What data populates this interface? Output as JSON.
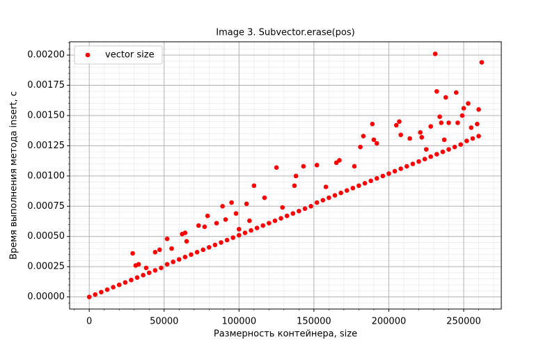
{
  "chart_data": {
    "type": "scatter",
    "title": "Image 3. Subvector.erase(pos)",
    "x_label": "Размерность контейнера, size",
    "y_label": "Время выполнения метода insert, с",
    "xlim": [
      -13100,
      275100
    ],
    "ylim": [
      -0.0001,
      0.00211
    ],
    "xticks": [
      0,
      50000,
      100000,
      150000,
      200000,
      250000
    ],
    "yticks": [
      {
        "value": 0,
        "label": "0.00000"
      },
      {
        "value": 0.00025,
        "label": "0.00025"
      },
      {
        "value": 0.0005,
        "label": "0.00050"
      },
      {
        "value": 0.00075,
        "label": "0.00075"
      },
      {
        "value": 0.001,
        "label": "0.00100"
      },
      {
        "value": 0.00125,
        "label": "0.00125"
      },
      {
        "value": 0.0015,
        "label": "0.00150"
      },
      {
        "value": 0.00175,
        "label": "0.00175"
      },
      {
        "value": 0.002,
        "label": "0.00200"
      }
    ],
    "xminorticks": [
      -10000,
      10000,
      20000,
      30000,
      40000,
      60000,
      70000,
      80000,
      90000,
      110000,
      120000,
      130000,
      140000,
      160000,
      170000,
      180000,
      190000,
      210000,
      220000,
      230000,
      240000,
      260000,
      270000
    ],
    "yminorticks": [
      -5e-05,
      5e-05,
      0.0001,
      0.00015,
      0.0002,
      0.0003,
      0.00035,
      0.0004,
      0.00045,
      0.00055,
      0.0006,
      0.00065,
      0.0007,
      0.0008,
      0.00085,
      0.0009,
      0.00095,
      0.00105,
      0.0011,
      0.00115,
      0.0012,
      0.0013,
      0.00135,
      0.0014,
      0.00145,
      0.00155,
      0.0016,
      0.00165,
      0.0017,
      0.0018,
      0.00185,
      0.0019,
      0.00195,
      0.00205,
      0.0021
    ],
    "grid": true,
    "minor_grid": true,
    "legend": "upper left",
    "x": [
      0,
      4000,
      8000,
      12000,
      16000,
      20000,
      24000,
      28000,
      32000,
      36000,
      40000,
      44000,
      48000,
      52000,
      56000,
      60000,
      64000,
      68000,
      72000,
      76000,
      80000,
      84000,
      88000,
      92000,
      96000,
      100000,
      104000,
      108000,
      112000,
      116000,
      120000,
      124000,
      128000,
      132000,
      136000,
      140000,
      144000,
      148000,
      152000,
      156000,
      160000,
      164000,
      168000,
      172000,
      176000,
      180000,
      184000,
      188000,
      192000,
      196000,
      200000,
      204000,
      208000,
      212000,
      216000,
      220000,
      224000,
      228000,
      232000,
      236000,
      240000,
      244000,
      248000,
      252000,
      256000,
      260000,
      29000,
      31000,
      33000,
      38000,
      44000,
      47000,
      52000,
      55000,
      62000,
      64000,
      65000,
      73000,
      77000,
      79000,
      85000,
      89000,
      91000,
      95000,
      98000,
      100000,
      105000,
      107000,
      110000,
      117000,
      125000,
      129000,
      137000,
      138000,
      143000,
      152000,
      158000,
      165000,
      167000,
      177000,
      181000,
      183000,
      189000,
      190000,
      192000,
      205000,
      207000,
      208000,
      214000,
      221000,
      222000,
      225000,
      228000,
      231000,
      232000,
      234000,
      235000,
      237000,
      238000,
      240000,
      245000,
      246000,
      249000,
      250000,
      253000,
      255000,
      259000,
      260000,
      262000
    ],
    "series": [
      {
        "name": "vector size",
        "color": "red",
        "values": [
          0,
          2e-05,
          4e-05,
          6e-05,
          8e-05,
          0.0001,
          0.00012,
          0.00014,
          0.00016,
          0.00018,
          0.0002,
          0.00022,
          0.00024,
          0.00027,
          0.00029,
          0.00031,
          0.00033,
          0.00035,
          0.00037,
          0.00039,
          0.00041,
          0.00043,
          0.00045,
          0.00047,
          0.00049,
          0.00051,
          0.00053,
          0.00055,
          0.00057,
          0.00059,
          0.00061,
          0.00063,
          0.00065,
          0.00067,
          0.00069,
          0.00071,
          0.00073,
          0.00075,
          0.00078,
          0.0008,
          0.00082,
          0.00084,
          0.00086,
          0.00088,
          0.0009,
          0.00092,
          0.00094,
          0.00096,
          0.00098,
          0.001,
          0.00102,
          0.00104,
          0.00106,
          0.00108,
          0.0011,
          0.00112,
          0.00114,
          0.00116,
          0.00118,
          0.0012,
          0.00122,
          0.00124,
          0.00126,
          0.00129,
          0.00131,
          0.00133,
          0.00036,
          0.00026,
          0.00027,
          0.00024,
          0.00037,
          0.00039,
          0.00048,
          0.0004,
          0.00052,
          0.00053,
          0.00046,
          0.00059,
          0.00058,
          0.00067,
          0.00061,
          0.00075,
          0.00064,
          0.00078,
          0.00069,
          0.00056,
          0.00077,
          0.00063,
          0.00092,
          0.00082,
          0.00107,
          0.00074,
          0.00092,
          0.001,
          0.00108,
          0.00109,
          0.00091,
          0.00111,
          0.00113,
          0.00108,
          0.00124,
          0.00133,
          0.00143,
          0.0013,
          0.00127,
          0.00142,
          0.00145,
          0.00134,
          0.00131,
          0.00136,
          0.00132,
          0.00122,
          0.00141,
          0.00201,
          0.0017,
          0.00149,
          0.00144,
          0.0013,
          0.00165,
          0.00144,
          0.00169,
          0.00144,
          0.0015,
          0.00156,
          0.0016,
          0.0014,
          0.00143,
          0.00155,
          0.00194
        ]
      }
    ]
  }
}
